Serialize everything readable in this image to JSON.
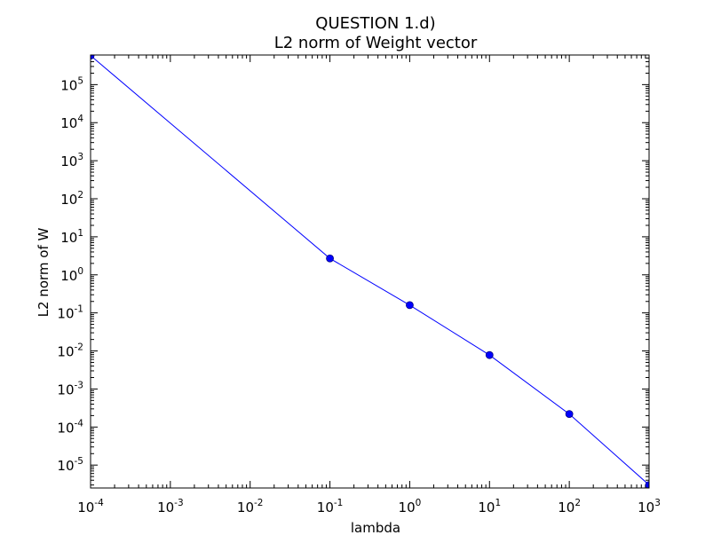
{
  "chart_data": {
    "type": "line",
    "title": "QUESTION 1.d)",
    "subtitle": "L2 norm of Weight vector",
    "xlabel": "lambda",
    "ylabel": "L2 norm of W",
    "xscale": "log",
    "yscale": "log",
    "xlim": [
      0.0001,
      1000
    ],
    "ylim": [
      2.5e-06,
      600000
    ],
    "grid": false,
    "legend": "none",
    "x_ticks": [
      {
        "base": "10",
        "exp": "-4",
        "value": 0.0001
      },
      {
        "base": "10",
        "exp": "-3",
        "value": 0.001
      },
      {
        "base": "10",
        "exp": "-2",
        "value": 0.01
      },
      {
        "base": "10",
        "exp": "-1",
        "value": 0.1
      },
      {
        "base": "10",
        "exp": "0",
        "value": 1
      },
      {
        "base": "10",
        "exp": "1",
        "value": 10
      },
      {
        "base": "10",
        "exp": "2",
        "value": 100
      },
      {
        "base": "10",
        "exp": "3",
        "value": 1000
      }
    ],
    "y_ticks": [
      {
        "base": "10",
        "exp": "-5",
        "value": 1e-05
      },
      {
        "base": "10",
        "exp": "-4",
        "value": 0.0001
      },
      {
        "base": "10",
        "exp": "-3",
        "value": 0.001
      },
      {
        "base": "10",
        "exp": "-2",
        "value": 0.01
      },
      {
        "base": "10",
        "exp": "-1",
        "value": 0.1
      },
      {
        "base": "10",
        "exp": "0",
        "value": 1
      },
      {
        "base": "10",
        "exp": "1",
        "value": 10
      },
      {
        "base": "10",
        "exp": "2",
        "value": 100
      },
      {
        "base": "10",
        "exp": "3",
        "value": 1000
      },
      {
        "base": "10",
        "exp": "4",
        "value": 10000
      },
      {
        "base": "10",
        "exp": "5",
        "value": 100000
      }
    ],
    "series": [
      {
        "color": "#0000ff",
        "marker": "circle",
        "points": [
          {
            "x": 0.0001,
            "y": 580000
          },
          {
            "x": 0.1,
            "y": 2.7
          },
          {
            "x": 1,
            "y": 0.16
          },
          {
            "x": 10,
            "y": 0.0078
          },
          {
            "x": 100,
            "y": 0.00022
          },
          {
            "x": 1000,
            "y": 3e-06
          }
        ]
      }
    ]
  }
}
